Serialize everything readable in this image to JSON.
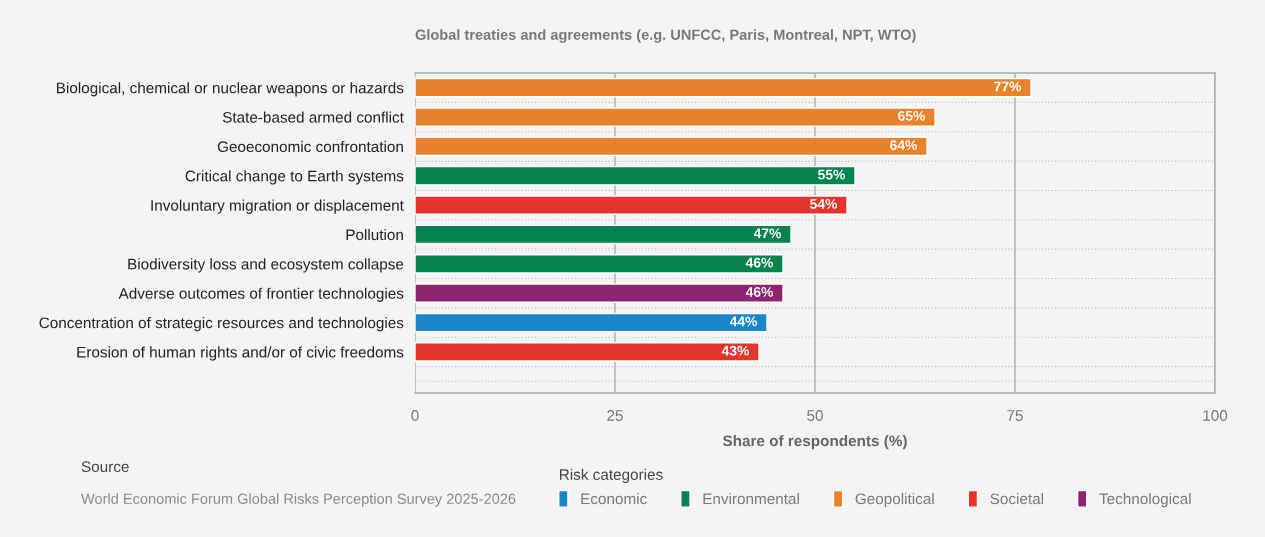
{
  "chart_data": {
    "type": "bar",
    "orientation": "horizontal",
    "title": "Global treaties and agreements (e.g. UNFCC, Paris, Montreal, NPT, WTO)",
    "xlabel": "Share of respondents (%)",
    "legend_title": "Risk categories",
    "categories": [
      "Biological, chemical or nuclear weapons or hazards",
      "State-based armed conflict",
      "Geoeconomic confrontation",
      "Critical change to Earth systems",
      "Involuntary migration or displacement",
      "Pollution",
      "Biodiversity loss and ecosystem collapse",
      "Adverse outcomes of frontier technologies",
      "Concentration of strategic resources and technologies",
      "Erosion of human rights and/or of civic freedoms"
    ],
    "series": [
      {
        "name": "Economic",
        "color": "#1a85c8",
        "values": [
          null,
          null,
          null,
          null,
          null,
          null,
          null,
          null,
          44,
          null
        ]
      },
      {
        "name": "Environmental",
        "color": "#06844f",
        "values": [
          null,
          null,
          null,
          55,
          null,
          47,
          46,
          null,
          null,
          null
        ]
      },
      {
        "name": "Geopolitical",
        "color": "#e8822a",
        "values": [
          77,
          65,
          64,
          null,
          null,
          null,
          null,
          null,
          null,
          null
        ]
      },
      {
        "name": "Societal",
        "color": "#e4352c",
        "values": [
          null,
          null,
          null,
          null,
          54,
          null,
          null,
          null,
          null,
          43
        ]
      },
      {
        "name": "Technological",
        "color": "#8e2370",
        "values": [
          null,
          null,
          null,
          null,
          null,
          null,
          null,
          46,
          null,
          null
        ]
      }
    ],
    "value_labels": [
      "77%",
      "65%",
      "64%",
      "55%",
      "54%",
      "47%",
      "46%",
      "46%",
      "44%",
      "43%"
    ],
    "xlim": [
      0,
      100
    ],
    "xticks": [
      0,
      25,
      50,
      75,
      100
    ],
    "grid": "x",
    "legend": "bottom",
    "annotations": [
      "Source",
      "World Economic Forum Global Risks Perception Survey 2025-2026"
    ]
  }
}
